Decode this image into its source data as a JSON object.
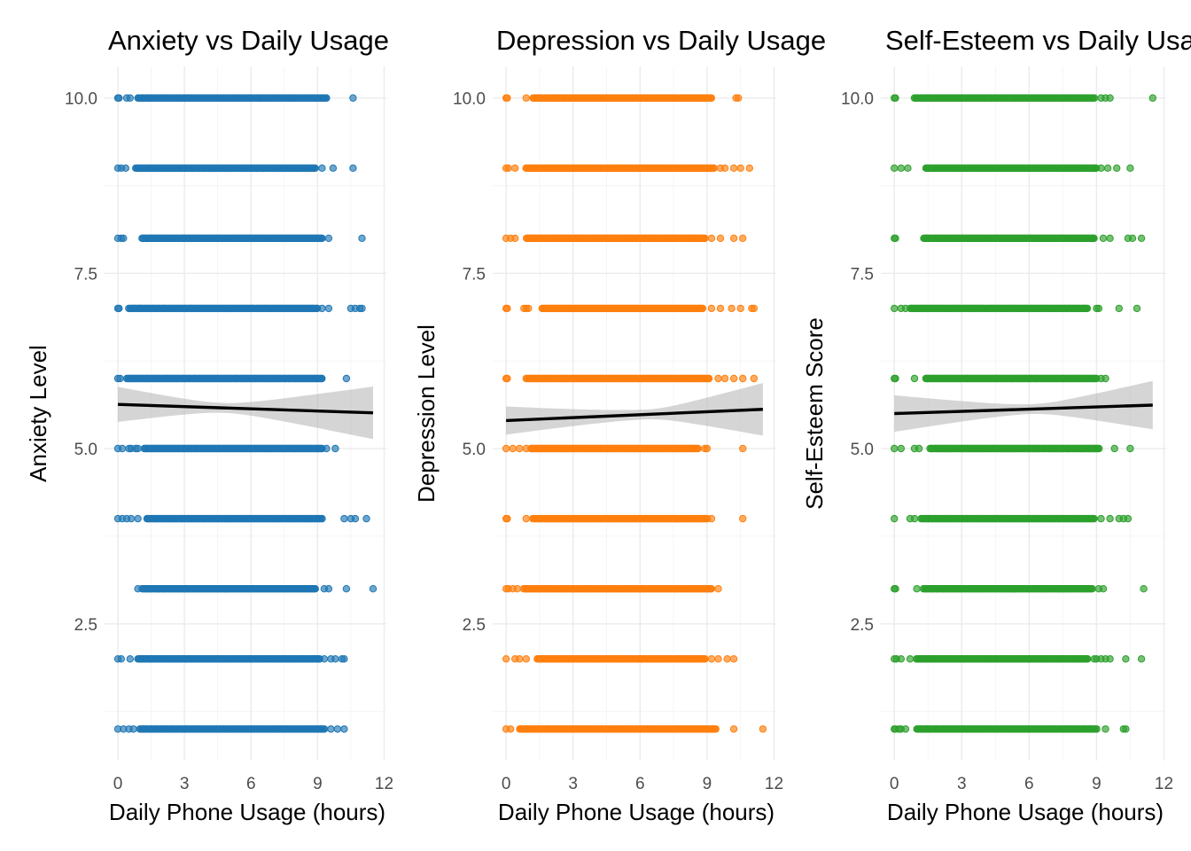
{
  "chart_data": [
    {
      "type": "scatter",
      "title": "Anxiety vs Daily Usage",
      "xlabel": "Daily Phone Usage (hours)",
      "ylabel": "Anxiety Level",
      "xlim": [
        -0.6,
        12.1
      ],
      "ylim": [
        0.55,
        10.45
      ],
      "xticks": [
        0,
        3,
        6,
        9,
        12
      ],
      "xtick_labels": [
        "0",
        "3",
        "6",
        "9",
        "12"
      ],
      "yticks": [
        2.5,
        5.0,
        7.5,
        10.0
      ],
      "ytick_labels": [
        "2.5",
        "5.0",
        "7.5",
        "10.0"
      ],
      "color": "#1f77b4",
      "grid": true,
      "levels": [
        {
          "y": 10,
          "dense": [
            0.9,
            9.4
          ],
          "outliers": [
            0,
            0.05,
            0.4,
            0.55,
            10.6
          ]
        },
        {
          "y": 9,
          "dense": [
            0.8,
            8.9
          ],
          "outliers": [
            0,
            0.15,
            0.35,
            9.2,
            9.7,
            10.6
          ]
        },
        {
          "y": 8,
          "dense": [
            1.1,
            9.2
          ],
          "outliers": [
            0,
            0.15,
            0.25,
            9.5,
            11.0
          ]
        },
        {
          "y": 7,
          "dense": [
            0.5,
            9.0
          ],
          "outliers": [
            0,
            0.05,
            9.2,
            9.5,
            10.5,
            10.7,
            10.9,
            11.0
          ]
        },
        {
          "y": 6,
          "dense": [
            0.4,
            9.2
          ],
          "outliers": [
            0,
            0.1,
            10.3
          ]
        },
        {
          "y": 5,
          "dense": [
            1.2,
            9.2
          ],
          "outliers": [
            0,
            0.2,
            0.5,
            0.6,
            0.8,
            0.9,
            9.4,
            9.8
          ]
        },
        {
          "y": 4,
          "dense": [
            1.3,
            9.2
          ],
          "outliers": [
            0,
            0.2,
            0.4,
            0.6,
            0.9,
            10.2,
            10.5,
            10.7,
            11.2
          ]
        },
        {
          "y": 3,
          "dense": [
            1.1,
            8.9
          ],
          "outliers": [
            0.9,
            9.3,
            9.5,
            10.3,
            11.5
          ]
        },
        {
          "y": 2,
          "dense": [
            0.9,
            9.1
          ],
          "outliers": [
            0,
            0.15,
            0.55,
            9.3,
            9.6,
            9.8,
            10.1,
            10.2
          ]
        },
        {
          "y": 1,
          "dense": [
            1.0,
            9.3
          ],
          "outliers": [
            0,
            0.25,
            0.5,
            0.7,
            9.6,
            9.9,
            10.2
          ]
        }
      ],
      "fit": {
        "x": [
          0,
          11.5
        ],
        "y": [
          5.63,
          5.51
        ],
        "ci_low": [
          5.38,
          5.13
        ],
        "ci_high": [
          5.88,
          5.88
        ]
      }
    },
    {
      "type": "scatter",
      "title": "Depression vs Daily Usage",
      "xlabel": "Daily Phone Usage (hours)",
      "ylabel": "Depression Level",
      "xlim": [
        -0.6,
        12.1
      ],
      "ylim": [
        0.55,
        10.45
      ],
      "xticks": [
        0,
        3,
        6,
        9,
        12
      ],
      "xtick_labels": [
        "0",
        "3",
        "6",
        "9",
        "12"
      ],
      "yticks": [
        2.5,
        5.0,
        7.5,
        10.0
      ],
      "ytick_labels": [
        "2.5",
        "5.0",
        "7.5",
        "10.0"
      ],
      "color": "#ff7f0e",
      "grid": true,
      "levels": [
        {
          "y": 10,
          "dense": [
            1.2,
            9.2
          ],
          "outliers": [
            0,
            0.05,
            0.9,
            10.3,
            10.4
          ]
        },
        {
          "y": 9,
          "dense": [
            0.9,
            9.3
          ],
          "outliers": [
            0,
            0.1,
            0.4,
            9.6,
            9.8,
            10.2,
            10.5,
            10.9
          ]
        },
        {
          "y": 8,
          "dense": [
            0.9,
            8.9
          ],
          "outliers": [
            0,
            0.2,
            0.4,
            9.2,
            9.6,
            10.2,
            10.6
          ]
        },
        {
          "y": 7,
          "dense": [
            1.6,
            8.8
          ],
          "outliers": [
            0,
            0.05,
            0.8,
            0.9,
            1.0,
            9.2,
            9.6,
            10.1,
            10.5,
            11.0,
            11.1
          ]
        },
        {
          "y": 6,
          "dense": [
            0.9,
            9.1
          ],
          "outliers": [
            0,
            0.05,
            9.5,
            9.8,
            10.2,
            10.6,
            11.1
          ]
        },
        {
          "y": 5,
          "dense": [
            1.1,
            8.6
          ],
          "outliers": [
            0,
            0.3,
            0.6,
            0.9,
            8.9,
            9.0,
            10.6
          ]
        },
        {
          "y": 4,
          "dense": [
            1.2,
            9.0
          ],
          "outliers": [
            0,
            0.05,
            0.9,
            9.2,
            10.6
          ]
        },
        {
          "y": 3,
          "dense": [
            0.8,
            9.2
          ],
          "outliers": [
            0,
            0.1,
            0.3,
            0.5,
            9.5
          ]
        },
        {
          "y": 2,
          "dense": [
            1.4,
            8.9
          ],
          "outliers": [
            0,
            0.4,
            0.6,
            0.9,
            9.2,
            9.5,
            9.9,
            10.2
          ]
        },
        {
          "y": 1,
          "dense": [
            0.6,
            9.4
          ],
          "outliers": [
            0,
            0.2,
            10.2,
            11.5
          ]
        }
      ],
      "fit": {
        "x": [
          0,
          11.5
        ],
        "y": [
          5.4,
          5.56
        ],
        "ci_low": [
          5.22,
          5.19
        ],
        "ci_high": [
          5.62,
          5.94
        ]
      }
    },
    {
      "type": "scatter",
      "title": "Self-Esteem vs Daily Usage",
      "xlabel": "Daily Phone Usage (hours)",
      "ylabel": "Self-Esteem Score",
      "xlim": [
        -0.6,
        12.1
      ],
      "ylim": [
        0.55,
        10.45
      ],
      "xticks": [
        0,
        3,
        6,
        9,
        12
      ],
      "xtick_labels": [
        "0",
        "3",
        "6",
        "9",
        "12"
      ],
      "yticks": [
        2.5,
        5.0,
        7.5,
        10.0
      ],
      "ytick_labels": [
        "2.5",
        "5.0",
        "7.5",
        "10.0"
      ],
      "color": "#2ca02c",
      "grid": true,
      "levels": [
        {
          "y": 10,
          "dense": [
            0.9,
            8.9
          ],
          "outliers": [
            0,
            0.05,
            9.2,
            9.4,
            9.6,
            11.5
          ]
        },
        {
          "y": 9,
          "dense": [
            1.4,
            9.0
          ],
          "outliers": [
            0,
            0.3,
            0.6,
            9.2,
            9.5,
            9.9,
            10.5
          ]
        },
        {
          "y": 8,
          "dense": [
            1.3,
            8.9
          ],
          "outliers": [
            0,
            0.05,
            9.3,
            9.6,
            10.4,
            10.6,
            11.0
          ]
        },
        {
          "y": 7,
          "dense": [
            0.7,
            8.6
          ],
          "outliers": [
            0,
            0.3,
            0.5,
            9.0,
            9.1,
            10.0,
            10.8
          ]
        },
        {
          "y": 6,
          "dense": [
            1.4,
            9.0
          ],
          "outliers": [
            0,
            0.05,
            0.9,
            9.2,
            9.4
          ]
        },
        {
          "y": 5,
          "dense": [
            1.6,
            9.1
          ],
          "outliers": [
            0,
            0.3,
            0.9,
            1.1,
            9.8,
            10.5
          ]
        },
        {
          "y": 4,
          "dense": [
            1.2,
            8.9
          ],
          "outliers": [
            0,
            0.7,
            0.9,
            9.2,
            9.6,
            10.0,
            10.2,
            10.4
          ]
        },
        {
          "y": 3,
          "dense": [
            1.3,
            8.8
          ],
          "outliers": [
            0,
            0.05,
            1.0,
            9.1,
            9.3,
            11.1
          ]
        },
        {
          "y": 2,
          "dense": [
            1.0,
            8.6
          ],
          "outliers": [
            0,
            0.1,
            0.3,
            0.7,
            8.9,
            9.0,
            9.2,
            9.4,
            9.6,
            10.3,
            11.0
          ]
        },
        {
          "y": 1,
          "dense": [
            1.0,
            9.0
          ],
          "outliers": [
            0,
            0.05,
            0.2,
            0.3,
            0.5,
            9.4,
            10.2,
            10.3
          ]
        }
      ],
      "fit": {
        "x": [
          0,
          11.5
        ],
        "y": [
          5.5,
          5.62
        ],
        "ci_low": [
          5.24,
          5.27
        ],
        "ci_high": [
          5.76,
          5.96
        ]
      }
    }
  ]
}
